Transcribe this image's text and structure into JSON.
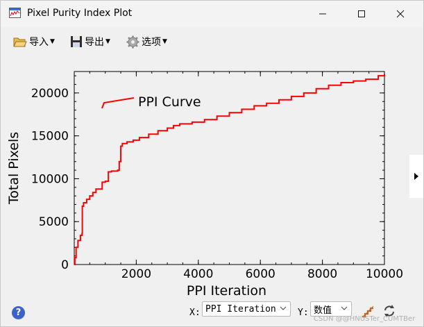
{
  "window": {
    "title": "Pixel Purity Index Plot",
    "controls": {
      "minimize": "—",
      "maximize": "☐",
      "close": "✕"
    }
  },
  "toolbar": {
    "import_label": "导入",
    "export_label": "导出",
    "options_label": "选项"
  },
  "axis_controls": {
    "x_label": "X:",
    "x_value": "PPI Iteration",
    "y_label": "Y:",
    "y_value": "数值"
  },
  "watermark": "CSDN @@HNUSTer_CUMTBer",
  "chart_data": {
    "type": "line",
    "xlabel": "PPI Iteration",
    "ylabel": "Total Pixels",
    "xlim": [
      0,
      10000
    ],
    "ylim": [
      0,
      22500
    ],
    "xticks": [
      2000,
      4000,
      6000,
      8000,
      10000
    ],
    "xtick_labels": [
      "2000",
      "4000",
      "6000",
      "8000",
      "10000"
    ],
    "yticks": [
      0,
      5000,
      10000,
      15000,
      20000
    ],
    "ytick_labels": [
      "0",
      "5000",
      "10000",
      "15000",
      "20000"
    ],
    "grid": false,
    "legend_position": "top-left",
    "series": [
      {
        "name": "PPI Curve",
        "color": "#ff0000",
        "x": [
          0,
          20,
          60,
          120,
          200,
          250,
          260,
          300,
          400,
          500,
          600,
          700,
          900,
          1000,
          1100,
          1200,
          1400,
          1450,
          1500,
          1550,
          1700,
          1900,
          2100,
          2400,
          2700,
          3000,
          3200,
          3400,
          3800,
          4200,
          4600,
          5000,
          5400,
          5800,
          6200,
          6600,
          7000,
          7400,
          7800,
          8200,
          8600,
          9000,
          9400,
          9800,
          10000
        ],
        "y": [
          0,
          800,
          2000,
          2800,
          3400,
          3600,
          6800,
          7200,
          7600,
          8000,
          8400,
          8800,
          9600,
          9700,
          10800,
          10900,
          11000,
          12000,
          13800,
          14100,
          14300,
          14500,
          14800,
          15200,
          15600,
          15900,
          16200,
          16400,
          16600,
          16900,
          17300,
          17700,
          18100,
          18500,
          18800,
          19200,
          19600,
          20000,
          20500,
          20900,
          21200,
          21400,
          21600,
          22000,
          22200
        ]
      }
    ]
  }
}
